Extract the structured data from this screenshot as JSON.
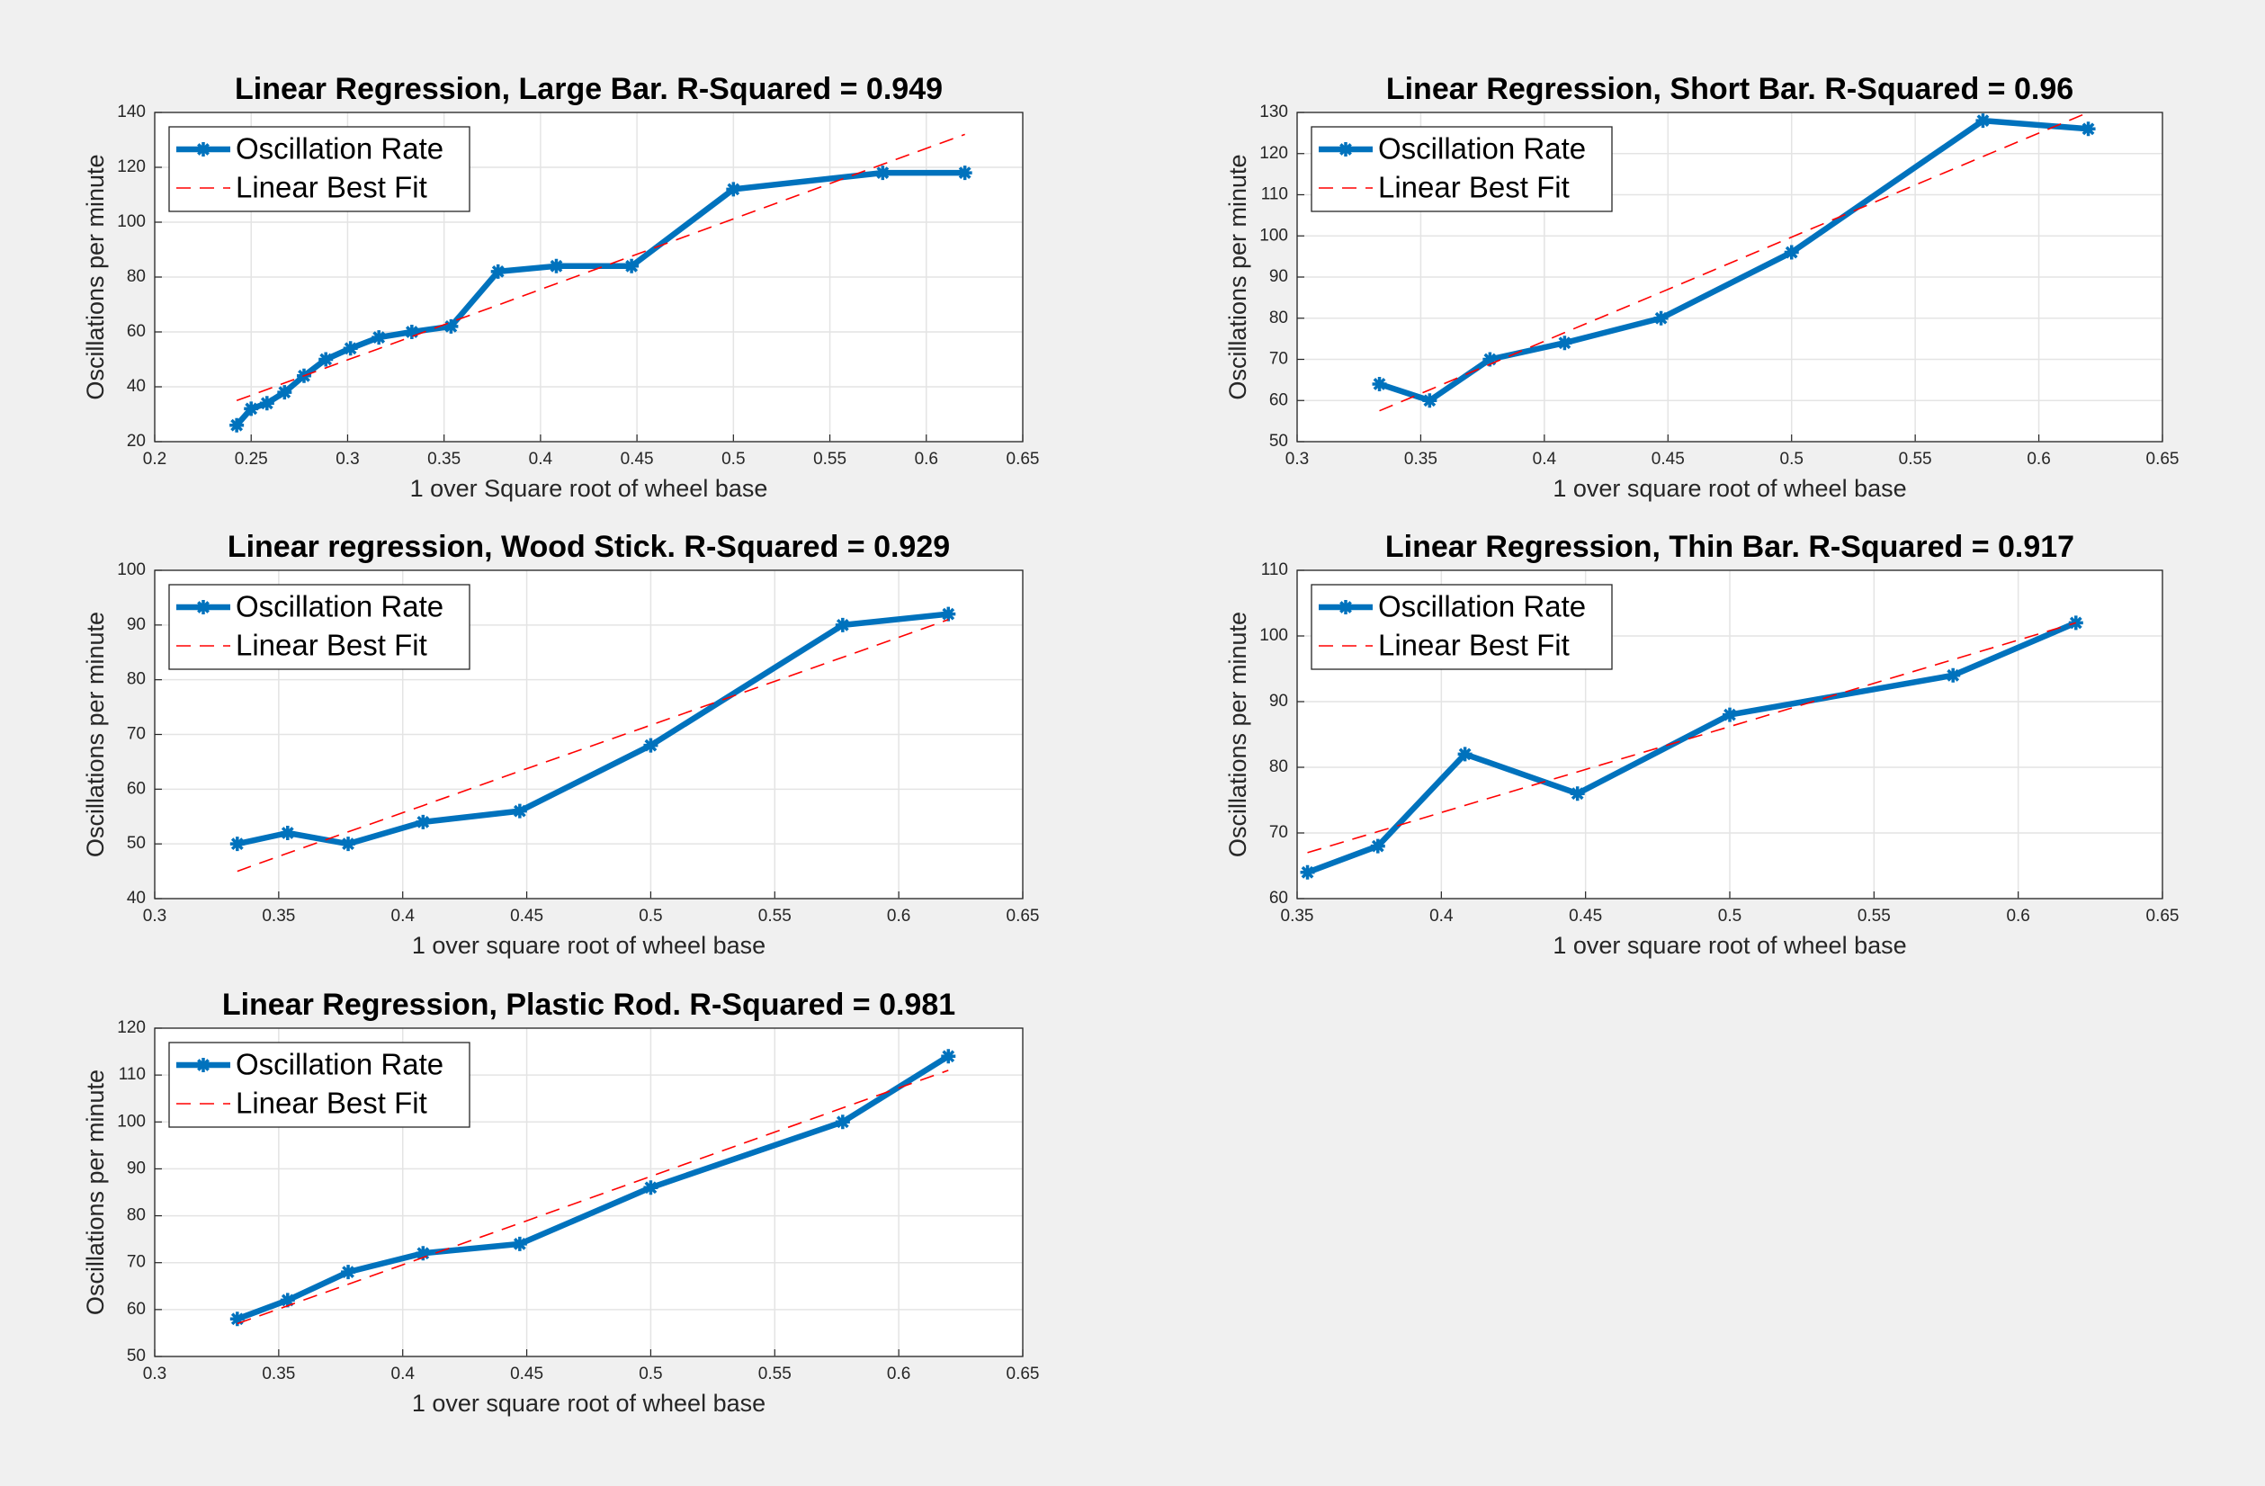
{
  "chart_data": [
    {
      "type": "line",
      "title": "Linear Regression, Large Bar. R-Squared = 0.949",
      "xlabel": "1 over Square root of wheel base",
      "ylabel": "Oscillations per minute",
      "x": [
        0.2425,
        0.25,
        0.2582,
        0.2673,
        0.2774,
        0.2887,
        0.3015,
        0.3162,
        0.3333,
        0.3536,
        0.378,
        0.4082,
        0.4472,
        0.5,
        0.5774,
        0.62
      ],
      "series": [
        {
          "name": "Oscillation Rate",
          "color": "#0072bd",
          "values": [
            26,
            32,
            34,
            38,
            44,
            50,
            54,
            58,
            60,
            62,
            82,
            84,
            84,
            112,
            118,
            118
          ]
        },
        {
          "name": "Linear Best Fit",
          "color": "#ff0000",
          "values": [
            35,
            36.9,
            39.0,
            41.4,
            44.0,
            46.9,
            50.2,
            53.9,
            58.3,
            63.6,
            69.8,
            77.6,
            87.6,
            101.2,
            121.1,
            132.0
          ]
        }
      ],
      "xlim": [
        0.2,
        0.65
      ],
      "xticks": [
        0.2,
        0.25,
        0.3,
        0.35,
        0.4,
        0.45,
        0.5,
        0.55,
        0.6,
        0.65
      ],
      "ylim": [
        20,
        140
      ],
      "yticks": [
        20,
        40,
        60,
        80,
        100,
        120,
        140
      ],
      "grid": true,
      "legend": "northwest"
    },
    {
      "type": "line",
      "title": "Linear Regression, Short Bar. R-Squared = 0.96",
      "xlabel": "1 over square root of wheel base",
      "ylabel": "Oscillations per minute",
      "x": [
        0.3333,
        0.3536,
        0.378,
        0.4082,
        0.4472,
        0.5,
        0.5774,
        0.62
      ],
      "series": [
        {
          "name": "Oscillation Rate",
          "color": "#0072bd",
          "values": [
            64,
            60,
            70,
            74,
            80,
            96,
            128,
            126
          ]
        },
        {
          "name": "Linear Best Fit",
          "color": "#ff0000",
          "values": [
            57.5,
            62.6,
            68.8,
            76.5,
            86.3,
            99.7,
            119.3,
            130.0
          ]
        }
      ],
      "xlim": [
        0.3,
        0.65
      ],
      "xticks": [
        0.3,
        0.35,
        0.4,
        0.45,
        0.5,
        0.55,
        0.6,
        0.65
      ],
      "ylim": [
        50,
        130
      ],
      "yticks": [
        50,
        60,
        70,
        80,
        90,
        100,
        110,
        120,
        130
      ],
      "grid": true,
      "legend": "northwest"
    },
    {
      "type": "line",
      "title": "Linear regression, Wood Stick. R-Squared = 0.929",
      "xlabel": "1 over square root of wheel base",
      "ylabel": "Oscillations per minute",
      "x": [
        0.3333,
        0.3536,
        0.378,
        0.4082,
        0.4472,
        0.5,
        0.5774,
        0.62
      ],
      "series": [
        {
          "name": "Oscillation Rate",
          "color": "#0072bd",
          "values": [
            50,
            52,
            50,
            54,
            56,
            68,
            90,
            92
          ]
        },
        {
          "name": "Linear Best Fit",
          "color": "#ff0000",
          "values": [
            45,
            48.3,
            52.2,
            57.0,
            63.3,
            71.7,
            84.1,
            91.0
          ]
        }
      ],
      "xlim": [
        0.3,
        0.65
      ],
      "xticks": [
        0.3,
        0.35,
        0.4,
        0.45,
        0.5,
        0.55,
        0.6,
        0.65
      ],
      "ylim": [
        40,
        100
      ],
      "yticks": [
        40,
        50,
        60,
        70,
        80,
        90,
        100
      ],
      "grid": true,
      "legend": "northwest"
    },
    {
      "type": "line",
      "title": "Linear Regression, Thin Bar. R-Squared = 0.917",
      "xlabel": "1 over square root of wheel base",
      "ylabel": "Oscillations per minute",
      "x": [
        0.3536,
        0.378,
        0.4082,
        0.4472,
        0.5,
        0.5774,
        0.62
      ],
      "series": [
        {
          "name": "Oscillation Rate",
          "color": "#0072bd",
          "values": [
            64,
            68,
            82,
            76,
            88,
            94,
            102
          ]
        },
        {
          "name": "Linear Best Fit",
          "color": "#ff0000",
          "values": [
            67,
            70.2,
            74.2,
            79.3,
            86.2,
            96.4,
            102.0
          ]
        }
      ],
      "xlim": [
        0.35,
        0.65
      ],
      "xticks": [
        0.35,
        0.4,
        0.45,
        0.5,
        0.55,
        0.6,
        0.65
      ],
      "ylim": [
        60,
        110
      ],
      "yticks": [
        60,
        70,
        80,
        90,
        100,
        110
      ],
      "grid": true,
      "legend": "northwest"
    },
    {
      "type": "line",
      "title": "Linear Regression, Plastic Rod. R-Squared = 0.981",
      "xlabel": "1 over square root of wheel base",
      "ylabel": "Oscillations per minute",
      "x": [
        0.3333,
        0.3536,
        0.378,
        0.4082,
        0.4472,
        0.5,
        0.5774,
        0.62
      ],
      "series": [
        {
          "name": "Oscillation Rate",
          "color": "#0072bd",
          "values": [
            58,
            62,
            68,
            72,
            74,
            86,
            100,
            114
          ]
        },
        {
          "name": "Linear Best Fit",
          "color": "#ff0000",
          "values": [
            57,
            60.8,
            65.4,
            71.1,
            78.4,
            88.4,
            103.0,
            111.0
          ]
        }
      ],
      "xlim": [
        0.3,
        0.65
      ],
      "xticks": [
        0.3,
        0.35,
        0.4,
        0.45,
        0.5,
        0.55,
        0.6,
        0.65
      ],
      "ylim": [
        50,
        120
      ],
      "yticks": [
        50,
        60,
        70,
        80,
        90,
        100,
        110,
        120
      ],
      "grid": true,
      "legend": "northwest"
    }
  ]
}
